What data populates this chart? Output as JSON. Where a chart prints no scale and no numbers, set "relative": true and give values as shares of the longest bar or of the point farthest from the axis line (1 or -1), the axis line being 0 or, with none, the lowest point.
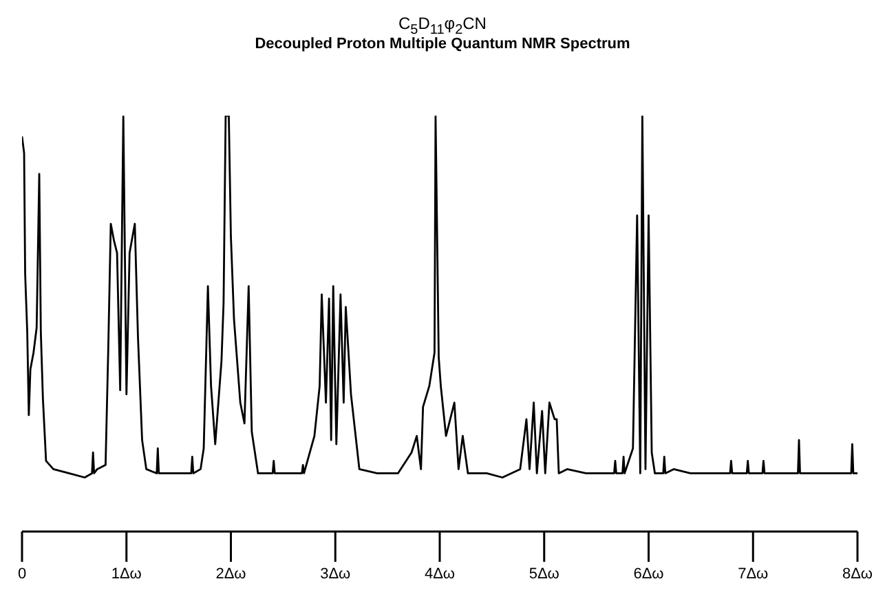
{
  "chart_data": {
    "type": "line",
    "title": "C$_{5}$D$_{11}$φ$_{2}$CN",
    "subtitle": "Decoupled Proton Multiple Quantum NMR Spectrum",
    "relative": true,
    "marker": "none",
    "line_style": "solid",
    "xlim": [
      0,
      8
    ],
    "xticks": [
      0,
      {
        "value": 1,
        "label": "1Δω"
      },
      {
        "value": 2,
        "label": "2Δω"
      },
      {
        "value": 3,
        "label": "3Δω"
      },
      {
        "value": 4,
        "label": "4Δω"
      },
      {
        "value": 5,
        "label": "5Δω"
      },
      {
        "value": 6,
        "label": "6Δω"
      },
      {
        "value": 7,
        "label": "7Δω"
      },
      {
        "value": 8,
        "label": "8Δω"
      }
    ],
    "x": [
      0,
      0.02,
      0.03,
      0.05,
      0.065,
      0.08,
      0.11,
      0.14,
      0.165,
      0.18,
      0.2,
      0.23,
      0.3,
      0.45,
      0.6,
      0.67,
      0.68,
      0.69,
      0.72,
      0.8,
      0.825,
      0.85,
      0.88,
      0.91,
      0.94,
      0.97,
      1.0,
      1.03,
      1.08,
      1.11,
      1.15,
      1.19,
      1.29,
      1.3,
      1.31,
      1.45,
      1.62,
      1.63,
      1.64,
      1.71,
      1.74,
      1.78,
      1.81,
      1.85,
      1.91,
      1.93,
      1.95,
      1.98,
      2.0,
      2.03,
      2.09,
      2.13,
      2.17,
      2.2,
      2.26,
      2.4,
      2.41,
      2.42,
      2.55,
      2.68,
      2.69,
      2.7,
      2.8,
      2.85,
      2.87,
      2.91,
      2.94,
      2.96,
      2.98,
      3.01,
      3.05,
      3.08,
      3.1,
      3.15,
      3.23,
      3.4,
      3.6,
      3.73,
      3.78,
      3.82,
      3.84,
      3.9,
      3.95,
      3.96,
      3.99,
      4.01,
      4.06,
      4.14,
      4.18,
      4.22,
      4.27,
      4.45,
      4.6,
      4.77,
      4.83,
      4.86,
      4.9,
      4.93,
      4.98,
      5.01,
      5.05,
      5.1,
      5.12,
      5.14,
      5.22,
      5.4,
      5.67,
      5.68,
      5.69,
      5.75,
      5.76,
      5.77,
      5.85,
      5.89,
      5.92,
      5.94,
      5.97,
      6.0,
      6.03,
      6.06,
      6.14,
      6.15,
      6.16,
      6.24,
      6.4,
      6.78,
      6.79,
      6.8,
      6.94,
      6.95,
      6.96,
      7.09,
      7.1,
      7.11,
      7.3,
      7.43,
      7.44,
      7.45,
      7.7,
      7.94,
      7.95,
      7.96,
      8.0
    ],
    "values": [
      0.95,
      0.91,
      0.62,
      0.48,
      0.28,
      0.39,
      0.43,
      0.49,
      0.86,
      0.48,
      0.32,
      0.17,
      0.15,
      0.14,
      0.13,
      0.14,
      0.19,
      0.14,
      0.15,
      0.16,
      0.43,
      0.74,
      0.7,
      0.67,
      0.34,
      1.0,
      0.33,
      0.67,
      0.74,
      0.47,
      0.22,
      0.15,
      0.14,
      0.2,
      0.14,
      0.14,
      0.14,
      0.18,
      0.14,
      0.15,
      0.2,
      0.59,
      0.35,
      0.21,
      0.41,
      0.55,
      1.0,
      1.0,
      0.71,
      0.51,
      0.31,
      0.26,
      0.59,
      0.24,
      0.14,
      0.14,
      0.17,
      0.14,
      0.14,
      0.14,
      0.16,
      0.14,
      0.23,
      0.35,
      0.57,
      0.31,
      0.56,
      0.22,
      0.59,
      0.21,
      0.57,
      0.31,
      0.54,
      0.33,
      0.15,
      0.14,
      0.14,
      0.19,
      0.23,
      0.15,
      0.3,
      0.35,
      0.43,
      1.0,
      0.42,
      0.35,
      0.23,
      0.31,
      0.15,
      0.23,
      0.14,
      0.14,
      0.13,
      0.15,
      0.27,
      0.15,
      0.31,
      0.14,
      0.29,
      0.14,
      0.31,
      0.27,
      0.27,
      0.14,
      0.15,
      0.14,
      0.14,
      0.17,
      0.14,
      0.14,
      0.18,
      0.14,
      0.2,
      0.76,
      0.14,
      1.0,
      0.15,
      0.76,
      0.19,
      0.14,
      0.14,
      0.18,
      0.14,
      0.15,
      0.14,
      0.14,
      0.17,
      0.14,
      0.14,
      0.17,
      0.14,
      0.14,
      0.17,
      0.14,
      0.14,
      0.14,
      0.22,
      0.14,
      0.14,
      0.14,
      0.21,
      0.14,
      0.14
    ],
    "color": "#000000"
  }
}
